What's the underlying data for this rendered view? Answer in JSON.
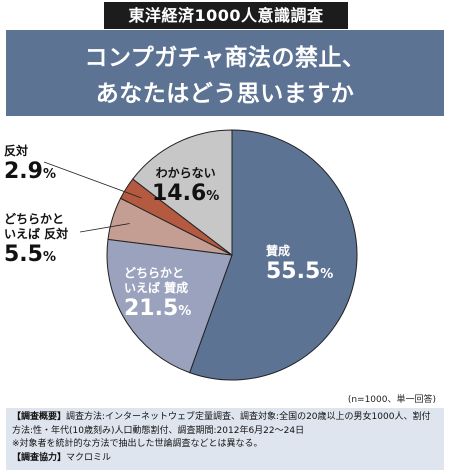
{
  "header": {
    "tag": "東洋経済1000人意識調査",
    "title_line1": "コンプガチャ商法の禁止、",
    "title_line2": "あなたはどう思いますか"
  },
  "chart_data": {
    "type": "pie",
    "unit": "%",
    "slices": [
      {
        "label": "賛成",
        "value": 55.5,
        "color": "#5c7394"
      },
      {
        "label": "どちらかといえば賛成",
        "value": 21.5,
        "color": "#9aa2bd"
      },
      {
        "label": "どちらかといえば反対",
        "value": 5.5,
        "color": "#c49e92"
      },
      {
        "label": "反対",
        "value": 2.9,
        "color": "#b35a40"
      },
      {
        "label": "わからない",
        "value": 14.6,
        "color": "#c7c7c7"
      }
    ],
    "labels": {
      "agree_t": "賛成",
      "agree_v": "55.5",
      "sagree_t1": "どちらかと",
      "sagree_t2": "いえば 賛成",
      "sagree_v": "21.5",
      "sdis_t1": "どちらかと",
      "sdis_t2": "いえば 反対",
      "sdis_v": "5.5",
      "dis_t": "反対",
      "dis_v": "2.9",
      "dk_t": "わからない",
      "dk_v": "14.6",
      "pct": "%"
    }
  },
  "note": "(n=1000、単一回答)",
  "footer": {
    "line1_label": "【調査概要】",
    "line1": "調査方法:インターネットウェブ定量調査、調査対象:全国の20歳以上の男女1000人、割付",
    "line2": "方法:性・年代(10歳刻み)人口動態割付、調査期間:2012年6月22〜24日",
    "line3": "※対象者を統計的な方法で抽出した世論調査などとは異なる。",
    "line4_label": "【調査協力】",
    "line4": "マクロミル"
  }
}
